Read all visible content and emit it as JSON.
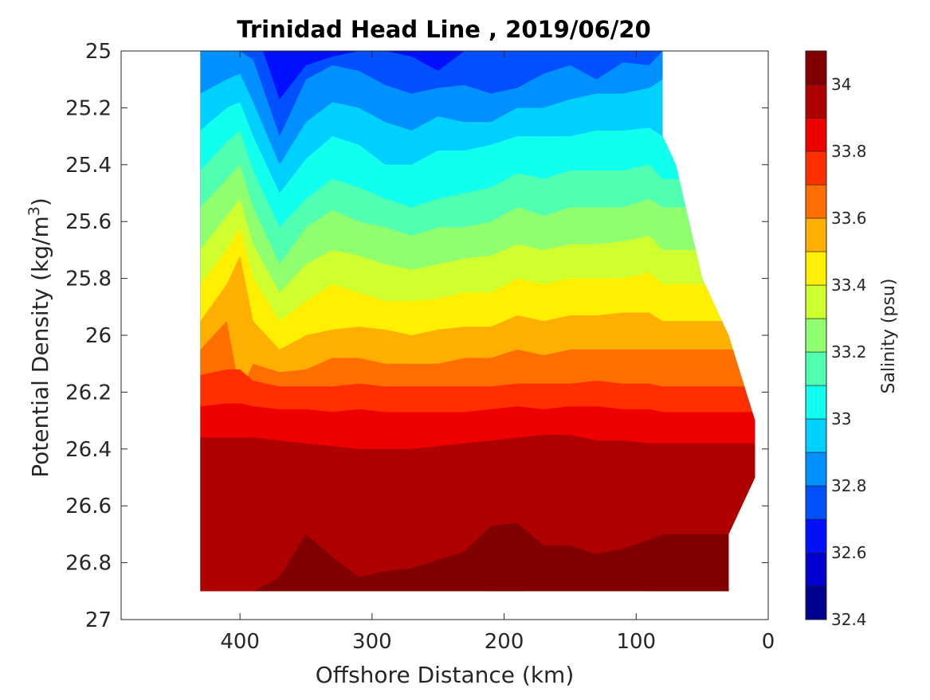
{
  "chart_data": {
    "type": "heatmap",
    "subtype": "filled-contour",
    "title": "Trinidad Head Line , 2019/06/20",
    "xlabel": "Offshore Distance (km)",
    "ylabel": "Potential Density (kg/m3)",
    "ylabel_base": "Potential Density (kg/m",
    "ylabel_sup": "3",
    "ylabel_close": ")",
    "x_direction": "reversed",
    "y_direction": "reversed",
    "xlim": [
      0,
      490
    ],
    "ylim": [
      25,
      27
    ],
    "x_ticks": [
      400,
      300,
      200,
      100,
      0
    ],
    "x_tick_labels": [
      "400",
      "300",
      "200",
      "100",
      "0"
    ],
    "y_ticks": [
      25,
      25.2,
      25.4,
      25.6,
      25.8,
      26,
      26.2,
      26.4,
      26.6,
      26.8,
      27
    ],
    "y_tick_labels": [
      "25",
      "25.2",
      "25.4",
      "25.6",
      "25.8",
      "26",
      "26.2",
      "26.4",
      "26.6",
      "26.8",
      "27"
    ],
    "colorbar": {
      "label": "Salinity (psu)",
      "range": [
        32.4,
        34.1
      ],
      "levels": [
        32.4,
        32.5,
        32.6,
        32.7,
        32.8,
        32.9,
        33.0,
        33.1,
        33.2,
        33.3,
        33.4,
        33.5,
        33.6,
        33.7,
        33.8,
        33.9,
        34.0,
        34.1
      ],
      "colors": [
        "#00008f",
        "#0000cf",
        "#0010ff",
        "#0050ff",
        "#0090ff",
        "#00d0ff",
        "#10ffef",
        "#50ffaf",
        "#90ff6f",
        "#d0ff2f",
        "#ffef00",
        "#ffaf00",
        "#ff6f00",
        "#ff2f00",
        "#ef0000",
        "#af0000",
        "#800000"
      ],
      "tick_values": [
        32.4,
        32.6,
        32.8,
        33.0,
        33.2,
        33.4,
        33.6,
        33.8,
        34.0
      ],
      "tick_labels": [
        "32.4",
        "32.6",
        "32.8",
        "33",
        "33.2",
        "33.4",
        "33.6",
        "33.8",
        "34"
      ]
    },
    "data_extent": {
      "x_range_top": [
        80,
        430
      ],
      "y_bottom": 26.9,
      "nearshore_edge": [
        [
          80,
          25.3
        ],
        [
          70,
          25.4
        ],
        [
          50,
          25.8
        ],
        [
          30,
          26.0
        ],
        [
          10,
          26.3
        ],
        [
          10,
          26.5
        ],
        [
          30,
          26.7
        ],
        [
          30,
          26.9
        ]
      ]
    },
    "sample_distances": [
      430,
      410,
      400,
      390,
      370,
      350,
      330,
      310,
      290,
      270,
      250,
      230,
      210,
      190,
      170,
      150,
      130,
      110,
      90,
      80
    ],
    "contour_lines": [
      {
        "level": 32.7,
        "y": [
          null,
          null,
          null,
          null,
          25.17,
          25.05,
          25.02,
          25.0,
          25.0,
          25.02,
          25.07,
          25.0,
          25.0,
          25.0,
          null,
          null,
          null,
          null,
          null,
          null
        ]
      },
      {
        "level": 32.8,
        "y": [
          25.0,
          25.0,
          25.0,
          25.03,
          25.3,
          25.1,
          25.05,
          25.07,
          25.12,
          25.15,
          25.13,
          25.12,
          25.15,
          25.13,
          25.08,
          25.05,
          25.1,
          25.04,
          25.05,
          25.0
        ]
      },
      {
        "level": 32.9,
        "y": [
          25.15,
          25.1,
          25.08,
          25.18,
          25.4,
          25.25,
          25.18,
          25.2,
          25.25,
          25.28,
          25.23,
          25.25,
          25.25,
          25.2,
          25.2,
          25.17,
          25.15,
          25.15,
          25.13,
          25.1
        ]
      },
      {
        "level": 33.0,
        "y": [
          25.28,
          25.2,
          25.18,
          25.3,
          25.5,
          25.38,
          25.3,
          25.33,
          25.4,
          25.4,
          25.35,
          25.35,
          25.33,
          25.3,
          25.3,
          25.3,
          25.28,
          25.28,
          25.27,
          25.3
        ]
      },
      {
        "level": 33.1,
        "y": [
          25.42,
          25.32,
          25.28,
          25.42,
          25.62,
          25.52,
          25.45,
          25.48,
          25.52,
          25.55,
          25.52,
          25.5,
          25.48,
          25.43,
          25.45,
          25.42,
          25.42,
          25.42,
          25.4,
          25.45
        ]
      },
      {
        "level": 33.2,
        "y": [
          25.55,
          25.45,
          25.4,
          25.55,
          25.75,
          25.62,
          25.56,
          25.6,
          25.62,
          25.65,
          25.62,
          25.62,
          25.6,
          25.55,
          25.58,
          25.55,
          25.55,
          25.55,
          25.52,
          25.55
        ]
      },
      {
        "level": 33.3,
        "y": [
          25.7,
          25.58,
          25.52,
          25.68,
          25.85,
          25.75,
          25.7,
          25.72,
          25.75,
          25.77,
          25.75,
          25.73,
          25.72,
          25.68,
          25.7,
          25.68,
          25.68,
          25.67,
          25.65,
          25.7
        ]
      },
      {
        "level": 33.4,
        "y": [
          25.82,
          25.7,
          25.62,
          25.8,
          25.95,
          25.88,
          25.82,
          25.85,
          25.88,
          25.88,
          25.87,
          25.85,
          25.85,
          25.8,
          25.82,
          25.8,
          25.8,
          25.8,
          25.78,
          25.82
        ]
      },
      {
        "level": 33.5,
        "y": [
          25.95,
          25.82,
          25.72,
          25.95,
          26.05,
          26.0,
          25.98,
          25.97,
          25.98,
          26.0,
          25.98,
          25.97,
          25.97,
          25.93,
          25.95,
          25.93,
          25.93,
          25.92,
          25.92,
          25.95
        ]
      },
      {
        "level": 33.6,
        "y": [
          26.05,
          25.95,
          26.2,
          26.1,
          26.13,
          26.12,
          26.08,
          26.08,
          26.1,
          26.1,
          26.1,
          26.08,
          26.08,
          26.05,
          26.07,
          26.05,
          26.05,
          26.05,
          26.05,
          26.05
        ]
      },
      {
        "level": 33.7,
        "y": [
          26.14,
          26.12,
          26.12,
          26.16,
          26.18,
          26.18,
          26.18,
          26.17,
          26.18,
          26.18,
          26.18,
          26.18,
          26.18,
          26.17,
          26.17,
          26.17,
          26.16,
          26.17,
          26.17,
          26.18
        ]
      },
      {
        "level": 33.8,
        "y": [
          26.25,
          26.24,
          26.24,
          26.25,
          26.26,
          26.26,
          26.27,
          26.26,
          26.27,
          26.27,
          26.27,
          26.27,
          26.26,
          26.25,
          26.26,
          26.25,
          26.25,
          26.26,
          26.26,
          26.27
        ]
      },
      {
        "level": 33.9,
        "y": [
          26.36,
          26.36,
          26.36,
          26.36,
          26.37,
          26.38,
          26.39,
          26.4,
          26.4,
          26.4,
          26.39,
          26.38,
          26.37,
          26.36,
          26.35,
          26.35,
          26.37,
          26.37,
          26.38,
          26.38
        ]
      },
      {
        "level": 34.0,
        "y": [
          26.9,
          26.9,
          26.9,
          26.9,
          26.85,
          26.7,
          26.78,
          26.85,
          26.83,
          26.82,
          26.79,
          26.76,
          26.67,
          26.66,
          26.74,
          26.74,
          26.77,
          26.75,
          26.72,
          26.7
        ]
      },
      {
        "level": 34.1,
        "y": [
          null,
          null,
          null,
          null,
          null,
          null,
          null,
          null,
          null,
          null,
          null,
          null,
          26.89,
          26.88,
          null,
          null,
          null,
          null,
          26.89,
          26.87
        ]
      }
    ]
  }
}
